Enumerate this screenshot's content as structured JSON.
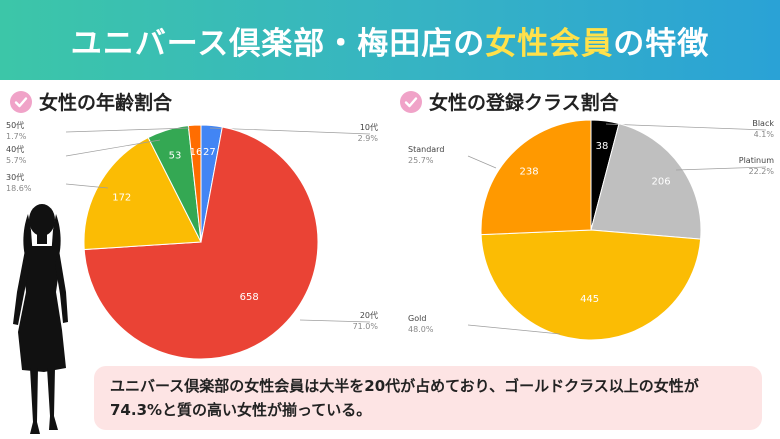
{
  "banner": {
    "title_pre": "ユニバース倶楽部・梅田店の",
    "title_highlight": "女性会員",
    "title_post": "の特徴",
    "gradient_start": "#3cc6a8",
    "gradient_end": "#2aa2d6",
    "highlight_color": "#ffe14a"
  },
  "icons": {
    "section_marker": "check-circle-icon",
    "silhouette": "woman-silhouette-icon"
  },
  "chart_data": [
    {
      "type": "pie",
      "title": "女性の年齢割合",
      "slices": [
        {
          "label": "10代",
          "value": 27,
          "percent": "2.9%",
          "color": "#4285f4"
        },
        {
          "label": "20代",
          "value": 658,
          "percent": "71.0%",
          "color": "#ea4335"
        },
        {
          "label": "30代",
          "value": 172,
          "percent": "18.6%",
          "color": "#fbbc04"
        },
        {
          "label": "40代",
          "value": 53,
          "percent": "5.7%",
          "color": "#34a853"
        },
        {
          "label": "50代",
          "value": 16,
          "percent": "1.7%",
          "color": "#ff6d01"
        }
      ]
    },
    {
      "type": "pie",
      "title": "女性の登録クラス割合",
      "slices": [
        {
          "label": "Black",
          "value": 38,
          "percent": "4.1%",
          "color": "#000000"
        },
        {
          "label": "Platinum",
          "value": 206,
          "percent": "22.2%",
          "color": "#bfbfbf"
        },
        {
          "label": "Gold",
          "value": 445,
          "percent": "48.0%",
          "color": "#fbbc04"
        },
        {
          "label": "Standard",
          "value": 238,
          "percent": "25.7%",
          "color": "#ff9900"
        }
      ]
    }
  ],
  "note": {
    "text": "ユニバース倶楽部の女性会員は大半を20代が占めており、ゴールドクラス以上の女性が74.3%と質の高い女性が揃っている。"
  }
}
